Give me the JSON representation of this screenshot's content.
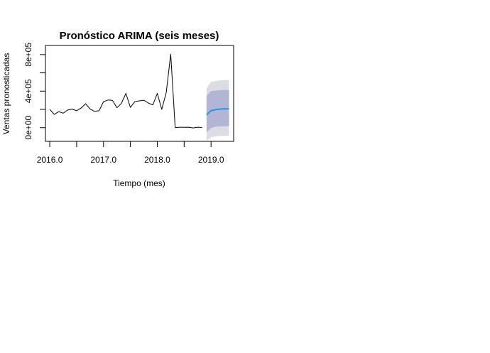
{
  "chart_data": {
    "type": "line",
    "title": "Pronóstico ARIMA (seis meses)",
    "xlabel": "Tiempo (mes)",
    "ylabel": "Ventas pronosticadas",
    "xlim": [
      2015.92,
      2019.42
    ],
    "ylim": [
      -150000,
      900000
    ],
    "x_ticks": [
      2016.0,
      2016.5,
      2017.0,
      2017.5,
      2018.0,
      2018.5,
      2019.0
    ],
    "x_tick_labels": [
      "2016.0",
      "",
      "2017.0",
      "",
      "2018.0",
      "",
      "2019.0"
    ],
    "y_ticks": [
      0,
      200000,
      400000,
      600000,
      800000
    ],
    "y_tick_labels": [
      "0e+00",
      "",
      "4e+05",
      "",
      "8e+05"
    ],
    "grid": false,
    "legend": "none",
    "series": [
      {
        "role": "observed",
        "color": "#000000",
        "x": [
          2016.0,
          2016.083,
          2016.167,
          2016.25,
          2016.333,
          2016.417,
          2016.5,
          2016.583,
          2016.667,
          2016.75,
          2016.833,
          2016.917,
          2017.0,
          2017.083,
          2017.167,
          2017.25,
          2017.333,
          2017.417,
          2017.5,
          2017.583,
          2017.667,
          2017.75,
          2017.833,
          2017.917,
          2018.0,
          2018.083,
          2018.167,
          2018.25,
          2018.333,
          2018.417,
          2018.5,
          2018.583,
          2018.667,
          2018.75,
          2018.833
        ],
        "y": [
          200000,
          145000,
          175000,
          158000,
          193000,
          203000,
          185000,
          215000,
          262000,
          205000,
          178000,
          185000,
          285000,
          303000,
          298000,
          218000,
          268000,
          375000,
          222000,
          285000,
          293000,
          300000,
          270000,
          248000,
          375000,
          200000,
          385000,
          805000,
          0,
          5000,
          3000,
          5000,
          -3000,
          5000,
          2000
        ]
      },
      {
        "role": "forecast",
        "color": "#2297E6",
        "x": [
          2018.917,
          2019.0,
          2019.083,
          2019.167,
          2019.25,
          2019.333
        ],
        "y": [
          140000,
          185000,
          198000,
          203000,
          206000,
          207000
        ]
      }
    ],
    "intervals": [
      {
        "level": 95,
        "color": "#DCDCE4",
        "x": [
          2018.917,
          2019.0,
          2019.083,
          2019.167,
          2019.25,
          2019.333
        ],
        "lower": [
          -140000,
          -105000,
          -95000,
          -92000,
          -90000,
          -90000
        ],
        "upper": [
          430000,
          500000,
          510000,
          518000,
          522000,
          522000
        ]
      },
      {
        "level": 80,
        "color": "#B2B5D3",
        "x": [
          2018.917,
          2019.0,
          2019.083,
          2019.167,
          2019.25,
          2019.333
        ],
        "lower": [
          -50000,
          -5000,
          10000,
          14000,
          16000,
          17000
        ],
        "upper": [
          350000,
          400000,
          405000,
          410000,
          412000,
          413000
        ]
      }
    ]
  }
}
